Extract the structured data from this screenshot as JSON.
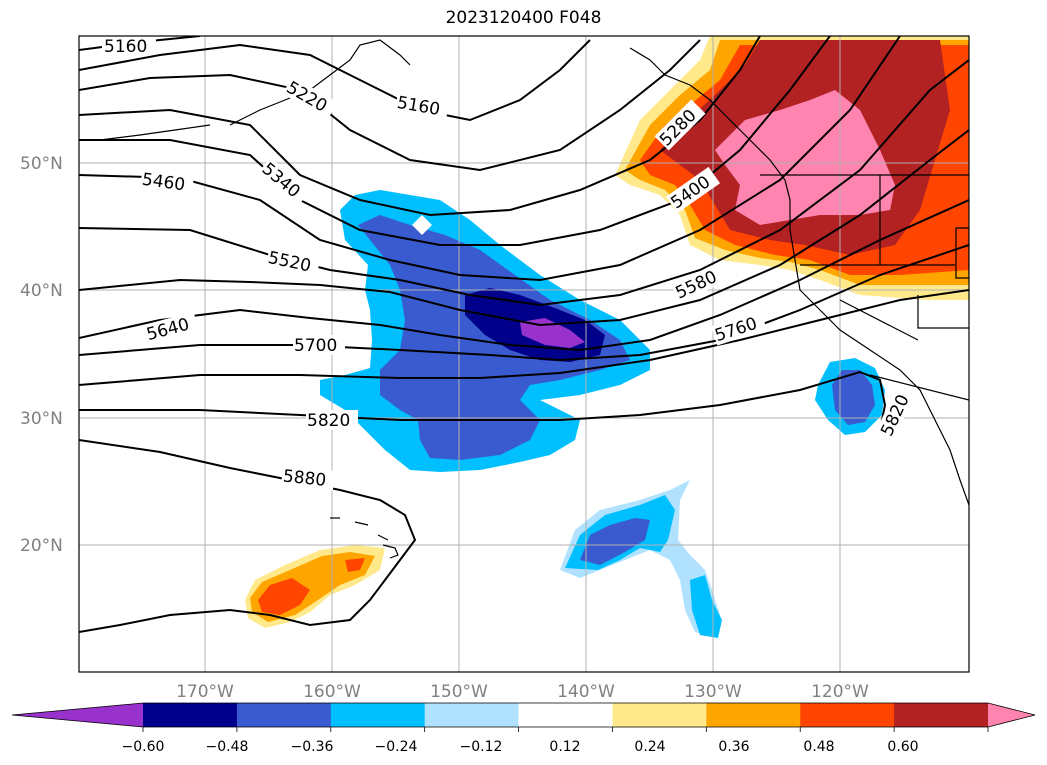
{
  "title": "2023120400 F048",
  "axes": {
    "lat_ticks": [
      "50°N",
      "40°N",
      "30°N",
      "20°N"
    ],
    "lon_ticks": [
      "170°W",
      "160°W",
      "150°W",
      "140°W",
      "130°W",
      "120°W"
    ]
  },
  "contour_labels": [
    "5160",
    "5160",
    "5220",
    "5280",
    "5340",
    "5400",
    "5460",
    "5520",
    "5580",
    "5640",
    "5700",
    "5760",
    "5820",
    "5820",
    "5880"
  ],
  "colorbar": {
    "ticks": [
      "−0.60",
      "−0.48",
      "−0.36",
      "−0.24",
      "−0.12",
      "0.12",
      "0.24",
      "0.36",
      "0.48",
      "0.60"
    ],
    "colors": [
      "#9932cc",
      "#00008b",
      "#3a5bcf",
      "#00bfff",
      "#b0e2ff",
      "#ffffff",
      "#ffe98a",
      "#ffa500",
      "#ff4500",
      "#b22222",
      "#ff85b0"
    ]
  }
}
